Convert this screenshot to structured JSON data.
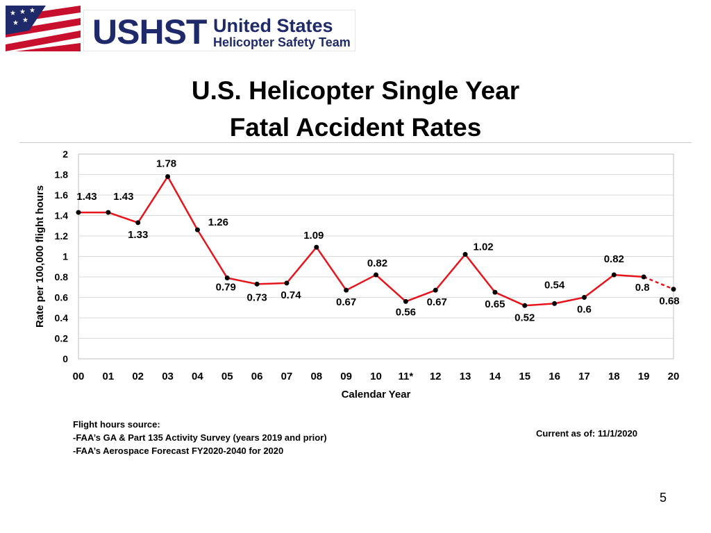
{
  "logo": {
    "abbr": "USHST",
    "line1": "United States",
    "line2": "Helicopter Safety Team"
  },
  "title": {
    "line1": "U.S. Helicopter Single Year",
    "line2": "Fatal Accident Rates"
  },
  "chart_data": {
    "type": "line",
    "categories": [
      "00",
      "01",
      "02",
      "03",
      "04",
      "05",
      "06",
      "07",
      "08",
      "09",
      "10",
      "11*",
      "12",
      "13",
      "14",
      "15",
      "16",
      "17",
      "18",
      "19",
      "20"
    ],
    "values": [
      1.43,
      1.43,
      1.33,
      1.78,
      1.26,
      0.79,
      0.73,
      0.74,
      1.09,
      0.67,
      0.82,
      0.56,
      0.67,
      1.02,
      0.65,
      0.52,
      0.54,
      0.6,
      0.82,
      0.8,
      0.68
    ],
    "data_labels": [
      "1.43",
      "1.43",
      "1.33",
      "1.78",
      "1.26",
      "0.79",
      "0.73",
      "0.74",
      "1.09",
      "0.67",
      "0.82",
      "0.56",
      "0.67",
      "1.02",
      "0.65",
      "0.52",
      "0.54",
      "0.6",
      "0.82",
      "0.8",
      "0.68"
    ],
    "xlabel": "Calendar Year",
    "ylabel": "Rate per 100,000 flight hours",
    "ylim": [
      0,
      2
    ],
    "yticks": [
      "0",
      "0.2",
      "0.4",
      "0.6",
      "0.8",
      "1",
      "1.2",
      "1.4",
      "1.6",
      "1.8",
      "2"
    ],
    "ytick_values": [
      0,
      0.2,
      0.4,
      0.6,
      0.8,
      1,
      1.2,
      1.4,
      1.6,
      1.8,
      2
    ],
    "grid": true,
    "dashed_last_segment": true,
    "line_color": "#e8141b",
    "marker_color": "#000000"
  },
  "notes": {
    "source_heading": "Flight hours source:",
    "source_line1": "-FAA’s GA & Part 135 Activity Survey (years 2019 and prior)",
    "source_line2": "-FAA’s Aerospace Forecast FY2020-2040 for 2020",
    "current_as_of": "Current as of:  11/1/2020"
  },
  "page_number": "5"
}
